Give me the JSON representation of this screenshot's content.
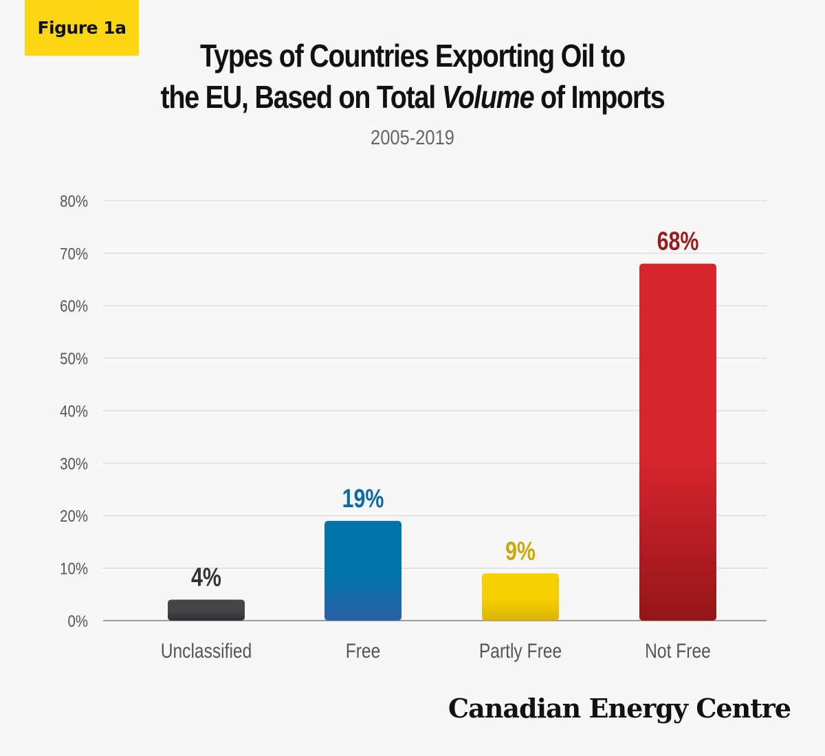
{
  "header": {
    "badge": "Figure 1a",
    "title_line1": "Types of Countries Exporting Oil to",
    "title_line2_before": "the EU, Based on Total ",
    "title_line2_em": "Volume",
    "title_line2_after": " of Imports",
    "subtitle": "2005-2019"
  },
  "chart_data": {
    "type": "bar",
    "title": "Types of Countries Exporting Oil to the EU, Based on Total Volume of Imports",
    "subtitle": "2005-2019",
    "categories": [
      "Unclassified",
      "Free",
      "Partly Free",
      "Not Free"
    ],
    "values": [
      4,
      19,
      9,
      68
    ],
    "value_labels": [
      "4%",
      "19%",
      "9%",
      "68%"
    ],
    "ylim": [
      0,
      80
    ],
    "yticks": [
      0,
      10,
      20,
      30,
      40,
      50,
      60,
      70,
      80
    ],
    "ytick_labels": [
      "0%",
      "10%",
      "20%",
      "30%",
      "40%",
      "50%",
      "60%",
      "70%",
      "80%"
    ],
    "grid": true,
    "bar_colors": [
      [
        "#454547",
        "#2f2f31"
      ],
      [
        "#0073a8",
        "#2a5fa3"
      ],
      [
        "#f5d000",
        "#d9b300"
      ],
      [
        "#d6252d",
        "#951519"
      ]
    ],
    "label_colors": [
      "#333333",
      "#0b6aa1",
      "#c9a800",
      "#9a1a1c"
    ]
  },
  "footer": {
    "brand": "Canadian Energy Centre"
  }
}
